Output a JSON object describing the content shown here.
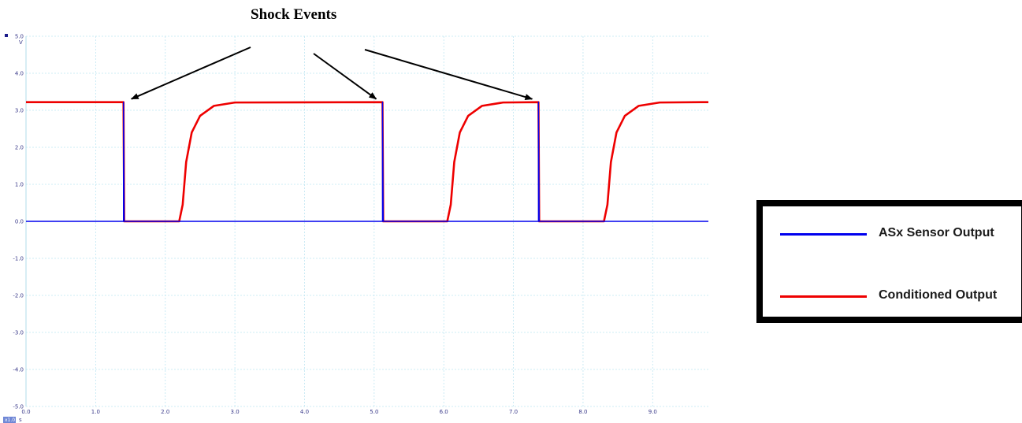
{
  "chart_data": {
    "type": "line",
    "title": "",
    "annotation": "Shock Events",
    "y_unit": "V",
    "x_unit": "s",
    "x_range_box": "x1.0",
    "xlim": [
      0,
      9.8
    ],
    "ylim": [
      -5,
      5
    ],
    "x_ticks": [
      0,
      1,
      2,
      3,
      4,
      5,
      6,
      7,
      8,
      9
    ],
    "x_tick_labels": [
      "0.0",
      "1.0",
      "2.0",
      "3.0",
      "4.0",
      "5.0",
      "6.0",
      "7.0",
      "8.0",
      "9.0"
    ],
    "y_ticks": [
      5,
      4,
      3,
      2,
      1,
      0,
      -1,
      -2,
      -3,
      -4,
      -5
    ],
    "y_tick_labels": [
      "5.0",
      "4.0",
      "3.0",
      "2.0",
      "1.0",
      "0.0",
      "-1.0",
      "-2.0",
      "-3.0",
      "-4.0",
      "-5.0"
    ],
    "grid": true,
    "legend_position": "right",
    "shock_events_x": [
      1.4,
      5.12,
      7.36
    ],
    "series": [
      {
        "name": "ASx Sensor Output",
        "color": "#0000ee",
        "points": [
          [
            0.0,
            0.0
          ],
          [
            1.4,
            0.0
          ],
          [
            1.4,
            3.22
          ],
          [
            1.41,
            0.0
          ],
          [
            5.12,
            0.0
          ],
          [
            5.12,
            3.22
          ],
          [
            5.13,
            0.0
          ],
          [
            7.36,
            0.0
          ],
          [
            7.36,
            3.22
          ],
          [
            7.37,
            0.0
          ],
          [
            9.8,
            0.0
          ]
        ]
      },
      {
        "name": "Conditioned Output",
        "color": "#ee0000",
        "points": [
          [
            0.0,
            3.22
          ],
          [
            1.4,
            3.22
          ],
          [
            1.41,
            0.0
          ],
          [
            2.2,
            0.0
          ],
          [
            2.25,
            0.45
          ],
          [
            2.3,
            1.6
          ],
          [
            2.38,
            2.4
          ],
          [
            2.5,
            2.85
          ],
          [
            2.7,
            3.12
          ],
          [
            3.0,
            3.21
          ],
          [
            5.12,
            3.22
          ],
          [
            5.13,
            0.0
          ],
          [
            6.05,
            0.0
          ],
          [
            6.1,
            0.45
          ],
          [
            6.15,
            1.6
          ],
          [
            6.23,
            2.4
          ],
          [
            6.35,
            2.85
          ],
          [
            6.55,
            3.12
          ],
          [
            6.85,
            3.21
          ],
          [
            7.36,
            3.22
          ],
          [
            7.37,
            0.0
          ],
          [
            8.3,
            0.0
          ],
          [
            8.35,
            0.45
          ],
          [
            8.4,
            1.6
          ],
          [
            8.48,
            2.4
          ],
          [
            8.6,
            2.85
          ],
          [
            8.8,
            3.12
          ],
          [
            9.1,
            3.21
          ],
          [
            9.8,
            3.22
          ]
        ]
      }
    ]
  }
}
